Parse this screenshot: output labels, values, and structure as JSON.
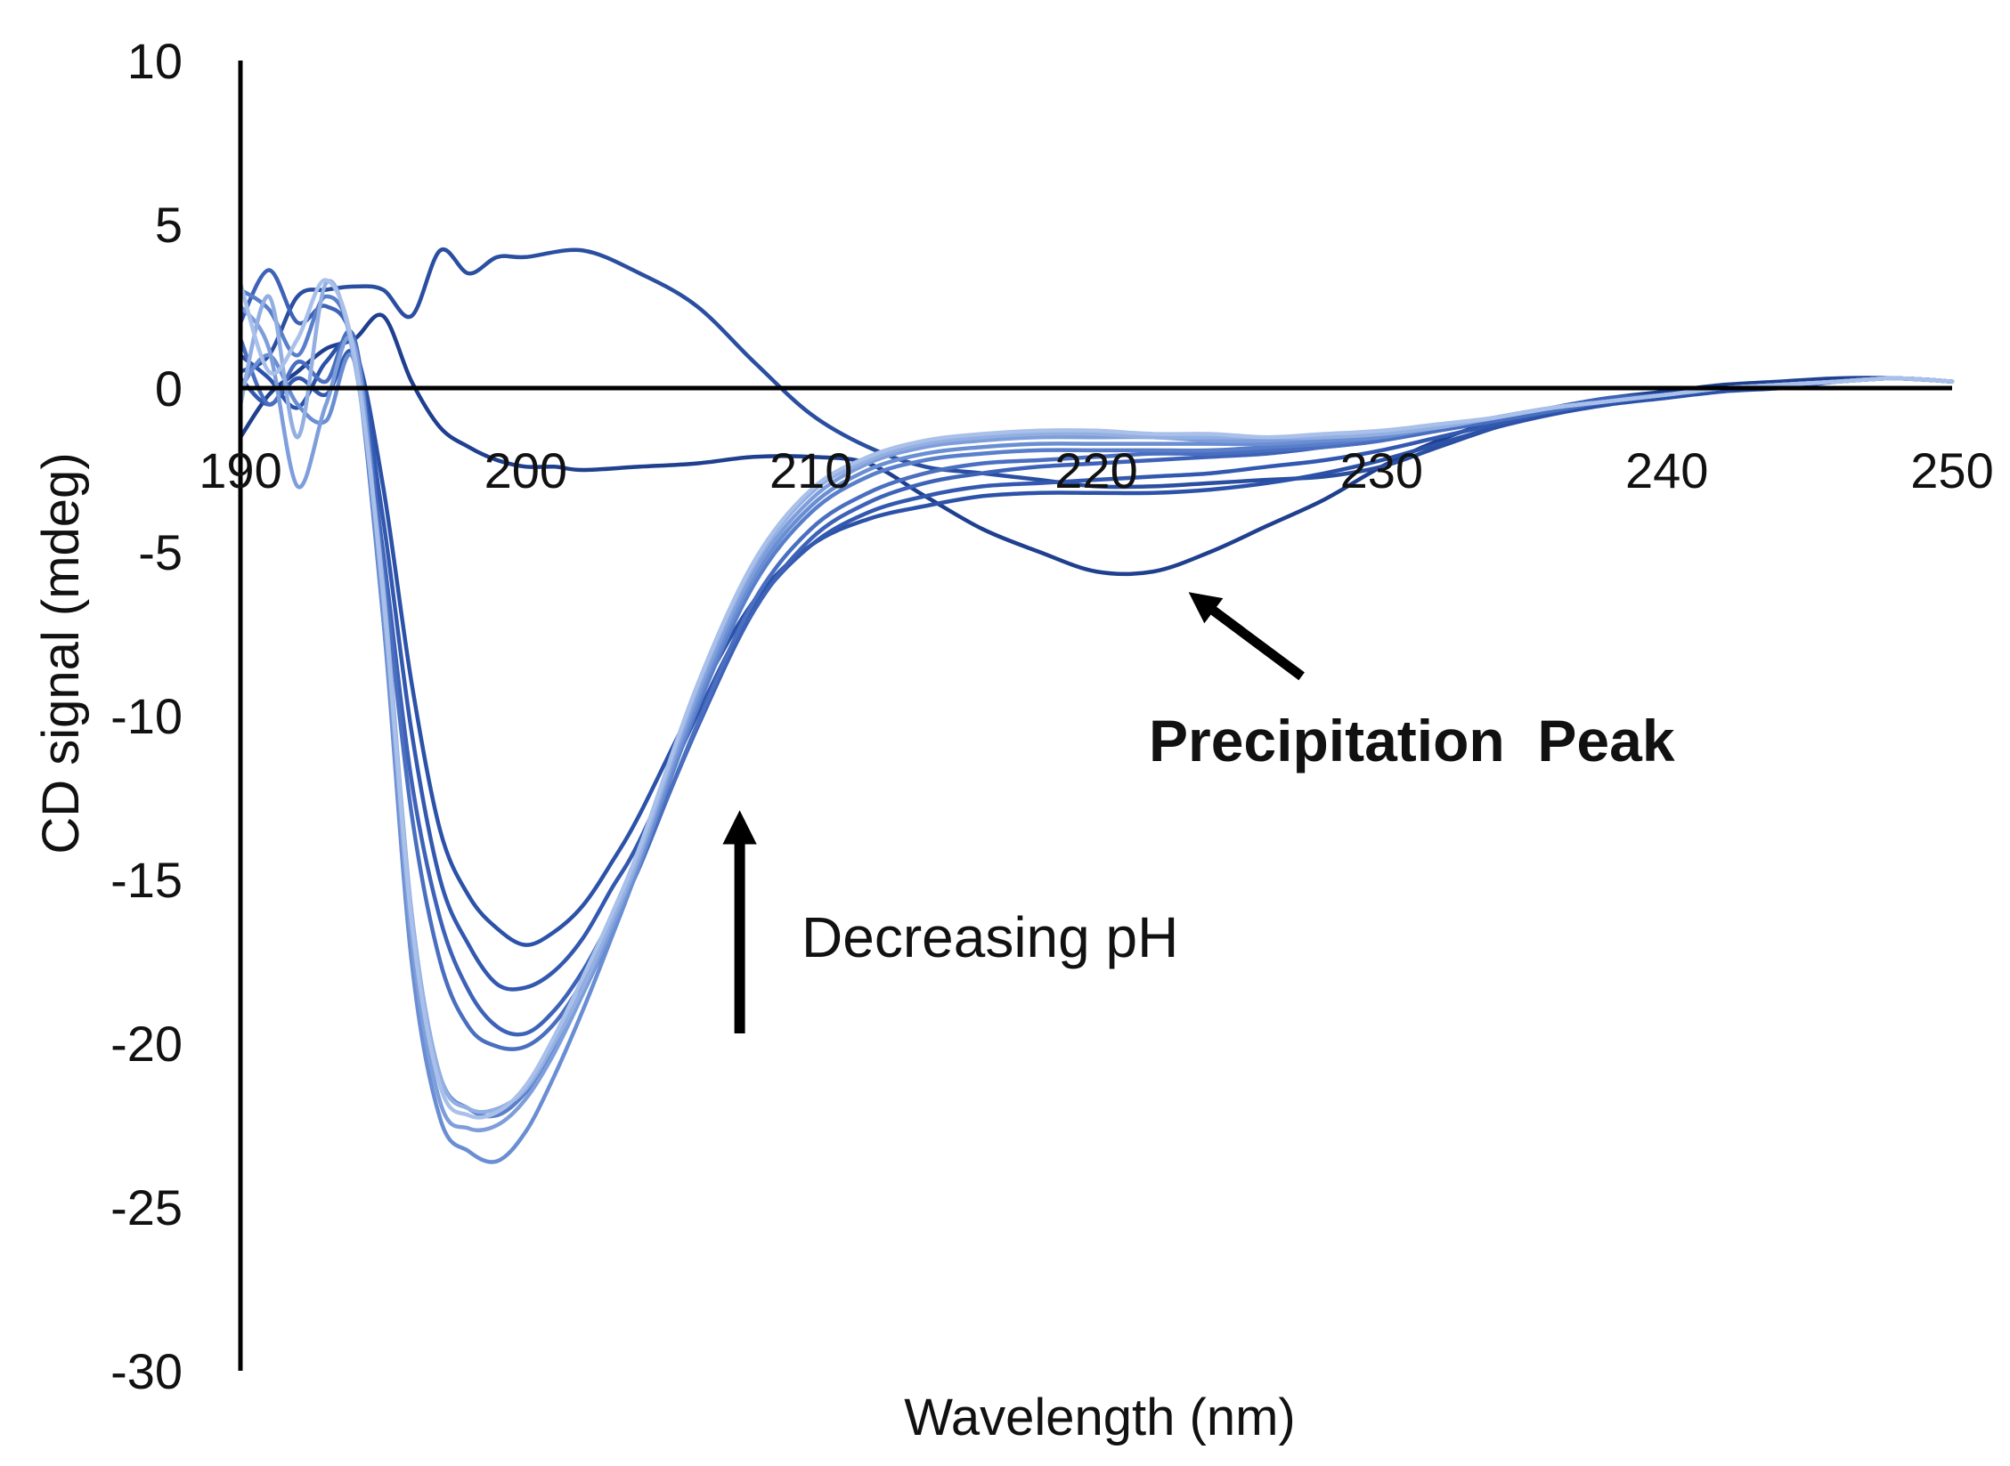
{
  "chart_data": {
    "type": "line",
    "title": "",
    "xlabel": "Wavelength (nm)",
    "ylabel": "CD signal (mdeg)",
    "xlim": [
      190,
      250
    ],
    "ylim": [
      -30,
      10
    ],
    "x_ticks": [
      190,
      200,
      210,
      220,
      230,
      240,
      250
    ],
    "y_ticks": [
      10,
      5,
      0,
      -5,
      -10,
      -15,
      -20,
      -25,
      -30
    ],
    "grid": false,
    "legend": "none",
    "series": [
      {
        "color": "#1f3f8f",
        "x": [
          190,
          191,
          192,
          193,
          194,
          195,
          196,
          197,
          198,
          199,
          200,
          201,
          202,
          204,
          206,
          208,
          210,
          212,
          214,
          216,
          218,
          220,
          222,
          224,
          226,
          228,
          230,
          232,
          234,
          236,
          238,
          240,
          242,
          244,
          246,
          248,
          250
        ],
        "y": [
          -1.5,
          -0.2,
          0.5,
          1.2,
          1.5,
          2.2,
          0.2,
          -1.2,
          -1.8,
          -2.2,
          -2.4,
          -2.4,
          -2.5,
          -2.4,
          -2.3,
          -2.1,
          -2.1,
          -2.3,
          -3.3,
          -4.3,
          -5.0,
          -5.6,
          -5.6,
          -5.0,
          -4.2,
          -3.4,
          -2.4,
          -1.6,
          -1.0,
          -0.6,
          -0.3,
          -0.1,
          0.1,
          0.2,
          0.3,
          0.3,
          0.2
        ]
      },
      {
        "color": "#2a4ea0",
        "x": [
          190,
          191,
          192,
          193,
          194,
          195,
          196,
          197,
          198,
          199,
          200,
          202,
          204,
          206,
          208,
          210,
          212,
          214,
          216,
          218,
          220,
          222,
          224,
          226,
          228,
          230,
          232,
          234,
          236,
          238,
          240,
          242,
          244,
          246,
          248,
          250
        ],
        "y": [
          0.5,
          1.0,
          2.8,
          3.0,
          3.1,
          3.0,
          2.2,
          4.2,
          3.5,
          4.0,
          4.0,
          4.2,
          3.5,
          2.5,
          0.8,
          -0.8,
          -1.8,
          -2.4,
          -2.6,
          -2.8,
          -3.0,
          -3.0,
          -2.9,
          -2.8,
          -2.7,
          -2.4,
          -1.8,
          -1.2,
          -0.7,
          -0.4,
          -0.2,
          0.0,
          0.1,
          0.2,
          0.3,
          0.2
        ]
      },
      {
        "color": "#2b52a8",
        "x": [
          190,
          191,
          192,
          193,
          194,
          195,
          196,
          197,
          198,
          199,
          200,
          201,
          202,
          203,
          204,
          206,
          208,
          210,
          212,
          214,
          216,
          218,
          220,
          222,
          224,
          226,
          228,
          230,
          232,
          234,
          236,
          238,
          240,
          242,
          244,
          246,
          248,
          250
        ],
        "y": [
          1.0,
          0.3,
          -0.6,
          0.8,
          1.2,
          -3.0,
          -9.0,
          -13.5,
          -15.5,
          -16.5,
          -17.0,
          -16.6,
          -15.8,
          -14.5,
          -13.0,
          -9.5,
          -6.5,
          -4.8,
          -4.0,
          -3.6,
          -3.3,
          -3.2,
          -3.2,
          -3.2,
          -3.1,
          -2.9,
          -2.6,
          -2.2,
          -1.7,
          -1.2,
          -0.8,
          -0.5,
          -0.3,
          -0.1,
          0.0,
          0.2,
          0.3,
          0.2
        ]
      },
      {
        "color": "#3358b0",
        "x": [
          190,
          191,
          192,
          193,
          194,
          195,
          196,
          197,
          198,
          199,
          200,
          201,
          202,
          203,
          204,
          206,
          208,
          210,
          212,
          214,
          216,
          218,
          220,
          222,
          224,
          226,
          228,
          230,
          232,
          234,
          236,
          238,
          240,
          242,
          244,
          246,
          248,
          250
        ],
        "y": [
          0.3,
          -0.5,
          0.3,
          -0.2,
          1.0,
          -4.0,
          -10.5,
          -15.0,
          -17.0,
          -18.2,
          -18.3,
          -17.8,
          -16.8,
          -15.3,
          -13.8,
          -10.0,
          -6.7,
          -4.8,
          -3.8,
          -3.3,
          -3.0,
          -2.9,
          -2.8,
          -2.7,
          -2.6,
          -2.4,
          -2.2,
          -1.9,
          -1.5,
          -1.1,
          -0.7,
          -0.4,
          -0.2,
          0.0,
          0.1,
          0.2,
          0.3,
          0.2
        ]
      },
      {
        "color": "#3d62b8",
        "x": [
          190,
          191,
          192,
          193,
          194,
          195,
          196,
          197,
          198,
          199,
          200,
          201,
          202,
          203,
          204,
          206,
          208,
          210,
          212,
          214,
          216,
          218,
          220,
          222,
          224,
          226,
          228,
          230,
          232,
          234,
          236,
          238,
          240,
          242,
          244,
          246,
          248,
          250
        ],
        "y": [
          2.0,
          3.6,
          2.0,
          2.5,
          1.2,
          -5.0,
          -12.0,
          -16.2,
          -18.4,
          -19.5,
          -19.7,
          -19.0,
          -17.8,
          -16.2,
          -14.5,
          -10.4,
          -6.8,
          -4.6,
          -3.5,
          -2.9,
          -2.6,
          -2.4,
          -2.3,
          -2.2,
          -2.1,
          -2.0,
          -1.8,
          -1.6,
          -1.2,
          -0.9,
          -0.6,
          -0.3,
          -0.2,
          0.0,
          0.1,
          0.2,
          0.3,
          0.2
        ]
      },
      {
        "color": "#4a6fc0",
        "x": [
          190,
          191,
          192,
          193,
          194,
          195,
          196,
          197,
          198,
          199,
          200,
          201,
          202,
          203,
          204,
          206,
          208,
          210,
          212,
          214,
          216,
          218,
          220,
          222,
          224,
          226,
          228,
          230,
          232,
          234,
          236,
          238,
          240,
          242,
          244,
          246,
          248,
          250
        ],
        "y": [
          1.5,
          -0.5,
          0.8,
          0.2,
          1.5,
          -5.5,
          -13.0,
          -17.5,
          -19.5,
          -20.1,
          -20.1,
          -19.4,
          -18.1,
          -16.4,
          -14.6,
          -10.3,
          -6.5,
          -4.3,
          -3.2,
          -2.6,
          -2.3,
          -2.2,
          -2.1,
          -2.0,
          -2.0,
          -1.9,
          -1.8,
          -1.6,
          -1.3,
          -1.0,
          -0.7,
          -0.4,
          -0.2,
          0.0,
          0.1,
          0.2,
          0.3,
          0.2
        ]
      },
      {
        "color": "#5a7fca",
        "x": [
          190,
          191,
          192,
          193,
          194,
          195,
          196,
          197,
          198,
          199,
          200,
          201,
          202,
          203,
          204,
          206,
          208,
          210,
          212,
          214,
          216,
          218,
          220,
          222,
          224,
          226,
          228,
          230,
          232,
          234,
          236,
          238,
          240,
          242,
          244,
          246,
          248,
          250
        ],
        "y": [
          3.0,
          2.4,
          1.0,
          2.8,
          1.0,
          -7.0,
          -16.5,
          -21.0,
          -22.0,
          -22.2,
          -21.5,
          -20.2,
          -18.5,
          -16.6,
          -14.5,
          -9.8,
          -6.0,
          -3.8,
          -2.7,
          -2.2,
          -2.0,
          -1.9,
          -1.9,
          -1.9,
          -1.9,
          -1.8,
          -1.7,
          -1.5,
          -1.2,
          -0.9,
          -0.6,
          -0.4,
          -0.2,
          0.0,
          0.1,
          0.2,
          0.3,
          0.2
        ]
      },
      {
        "color": "#6a8ed3",
        "x": [
          190,
          191,
          192,
          193,
          194,
          195,
          196,
          197,
          198,
          199,
          200,
          201,
          202,
          203,
          204,
          206,
          208,
          210,
          212,
          214,
          216,
          218,
          220,
          222,
          224,
          226,
          228,
          230,
          232,
          234,
          236,
          238,
          240,
          242,
          244,
          246,
          248,
          250
        ],
        "y": [
          0.0,
          1.0,
          -0.5,
          -1.0,
          0.8,
          -7.0,
          -17.5,
          -22.3,
          -23.3,
          -23.6,
          -22.7,
          -21.0,
          -19.0,
          -16.8,
          -14.5,
          -9.6,
          -5.8,
          -3.6,
          -2.5,
          -2.0,
          -1.8,
          -1.7,
          -1.7,
          -1.7,
          -1.7,
          -1.7,
          -1.6,
          -1.5,
          -1.2,
          -0.9,
          -0.6,
          -0.4,
          -0.2,
          0.0,
          0.1,
          0.2,
          0.3,
          0.2
        ]
      },
      {
        "color": "#7e9edb",
        "x": [
          190,
          191,
          192,
          193,
          194,
          195,
          196,
          197,
          198,
          199,
          200,
          201,
          202,
          203,
          204,
          206,
          208,
          210,
          212,
          214,
          216,
          218,
          220,
          222,
          224,
          226,
          228,
          230,
          232,
          234,
          236,
          238,
          240,
          242,
          244,
          246,
          248,
          250
        ],
        "y": [
          2.5,
          1.2,
          -3.0,
          -0.5,
          1.3,
          -6.5,
          -16.8,
          -21.8,
          -22.6,
          -22.5,
          -21.7,
          -20.3,
          -18.5,
          -16.5,
          -14.3,
          -9.4,
          -5.6,
          -3.4,
          -2.3,
          -1.8,
          -1.6,
          -1.5,
          -1.5,
          -1.5,
          -1.6,
          -1.6,
          -1.5,
          -1.4,
          -1.2,
          -0.9,
          -0.6,
          -0.4,
          -0.2,
          0.0,
          0.1,
          0.2,
          0.3,
          0.2
        ]
      },
      {
        "color": "#93afe2",
        "x": [
          190,
          191,
          192,
          193,
          194,
          195,
          196,
          197,
          198,
          199,
          200,
          201,
          202,
          203,
          204,
          206,
          208,
          210,
          212,
          214,
          216,
          218,
          220,
          222,
          224,
          226,
          228,
          230,
          232,
          234,
          236,
          238,
          240,
          242,
          244,
          246,
          248,
          250
        ],
        "y": [
          -0.5,
          2.8,
          -1.5,
          3.2,
          0.8,
          -6.0,
          -16.0,
          -21.0,
          -22.0,
          -22.0,
          -21.4,
          -20.0,
          -18.3,
          -16.3,
          -14.2,
          -9.2,
          -5.4,
          -3.2,
          -2.2,
          -1.7,
          -1.5,
          -1.4,
          -1.4,
          -1.5,
          -1.5,
          -1.5,
          -1.5,
          -1.4,
          -1.2,
          -0.9,
          -0.6,
          -0.4,
          -0.2,
          0.0,
          0.1,
          0.2,
          0.3,
          0.2
        ]
      },
      {
        "color": "#a9c0ea",
        "x": [
          190,
          191,
          192,
          193,
          194,
          195,
          196,
          197,
          198,
          199,
          200,
          201,
          202,
          203,
          204,
          206,
          208,
          210,
          212,
          214,
          216,
          218,
          220,
          222,
          224,
          226,
          228,
          230,
          232,
          234,
          236,
          238,
          240,
          242,
          244,
          246,
          248,
          250
        ],
        "y": [
          3.2,
          0.5,
          1.5,
          3.3,
          1.0,
          -6.3,
          -16.3,
          -21.3,
          -22.2,
          -22.1,
          -21.3,
          -19.8,
          -18.0,
          -16.1,
          -14.0,
          -9.1,
          -5.3,
          -3.1,
          -2.1,
          -1.6,
          -1.4,
          -1.3,
          -1.3,
          -1.4,
          -1.4,
          -1.5,
          -1.4,
          -1.3,
          -1.1,
          -0.9,
          -0.6,
          -0.4,
          -0.2,
          0.0,
          0.1,
          0.2,
          0.3,
          0.2
        ]
      }
    ],
    "annotations": [
      {
        "text": "Precipitation  Peak",
        "arrow_tip": [
          223.5,
          -6.4
        ],
        "arrow_tail": [
          227.2,
          -8.8
        ]
      },
      {
        "text": "Decreasing pH",
        "arrow_tip": [
          207.5,
          -13.2
        ],
        "arrow_tail": [
          207.5,
          -19.7
        ]
      }
    ]
  }
}
